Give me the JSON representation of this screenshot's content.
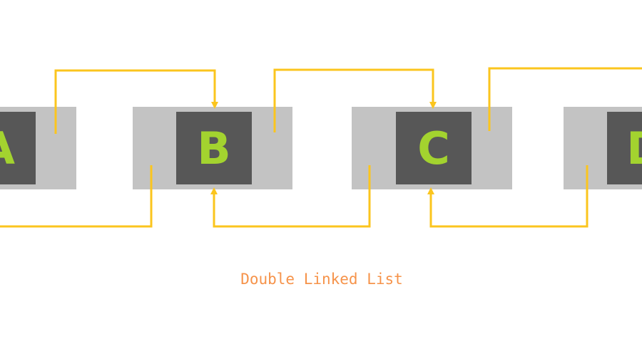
{
  "diagram": {
    "caption": "Double Linked List",
    "nodes": [
      {
        "label": "A"
      },
      {
        "label": "B"
      },
      {
        "label": "C"
      },
      {
        "label": "D"
      }
    ]
  },
  "colors": {
    "background": "#ffffff",
    "node_outer": "#c3c3c3",
    "node_inner": "#575757",
    "node_text": "#a3d32f",
    "arrow": "#fbc51e",
    "caption": "#f6934a"
  }
}
